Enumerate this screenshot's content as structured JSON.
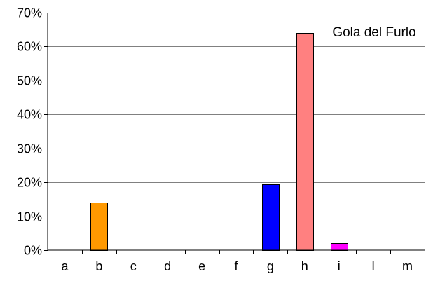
{
  "chart_data": {
    "type": "bar",
    "title": "",
    "annotation": "Gola del Furlo",
    "xlabel": "",
    "ylabel": "",
    "categories": [
      "a",
      "b",
      "c",
      "d",
      "e",
      "f",
      "g",
      "h",
      "i",
      "l",
      "m"
    ],
    "values": [
      0,
      14,
      0,
      0,
      0,
      0,
      19.5,
      64,
      2,
      0,
      0
    ],
    "value_format": "percent",
    "ylim": [
      0,
      70
    ],
    "yticks": [
      0,
      10,
      20,
      30,
      40,
      50,
      60,
      70
    ],
    "ytick_labels": [
      "0%",
      "10%",
      "20%",
      "30%",
      "40%",
      "50%",
      "60%",
      "70%"
    ],
    "grid": true,
    "legend": "none",
    "bar_colors": [
      "#ff9900",
      "#ff9900",
      "#ff9900",
      "#ff9900",
      "#ff9900",
      "#ff9900",
      "#0000ff",
      "#ff8080",
      "#ff00ff",
      "#ff00ff",
      "#ff00ff"
    ],
    "outline_color": "#000000",
    "grid_color": "#808080"
  }
}
